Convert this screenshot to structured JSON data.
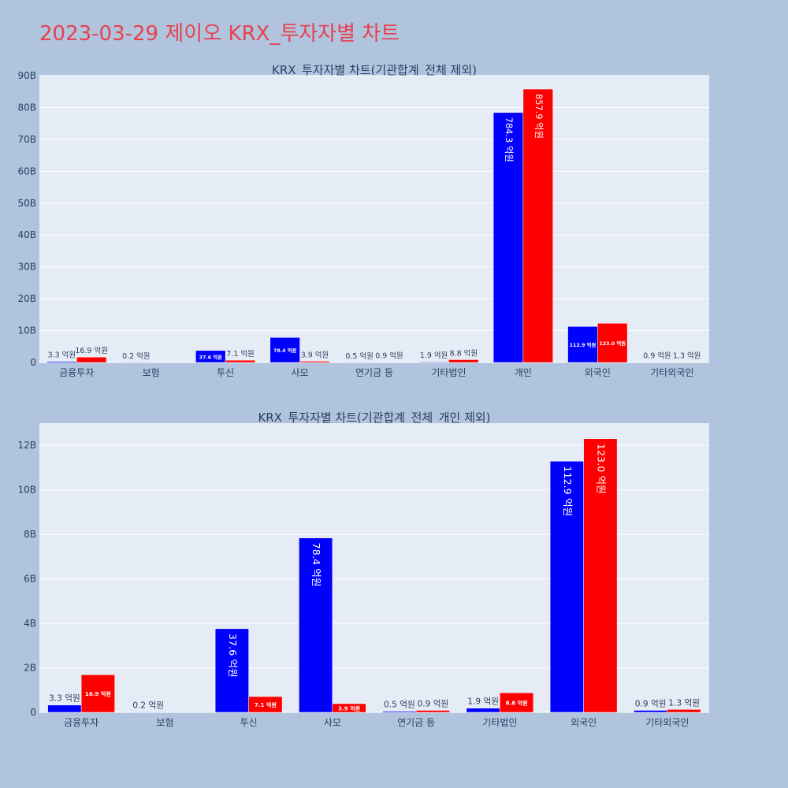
{
  "page": {
    "title": "2023-03-29 제이오 KRX_투자자별 차트",
    "title_color": "#e8414f",
    "background": "#b0c4de",
    "plot_background": "#e5ecf6"
  },
  "chart_data": [
    {
      "type": "bar",
      "title": "KRX_투자자별 차트(기관합계_전체 제외)",
      "xlabel": "",
      "ylabel": "",
      "ylim": [
        0,
        90000000000
      ],
      "yticks": [
        0,
        10000000000,
        20000000000,
        30000000000,
        40000000000,
        50000000000,
        60000000000,
        70000000000,
        80000000000,
        90000000000
      ],
      "ytick_labels": [
        "0",
        "10B",
        "20B",
        "30B",
        "40B",
        "50B",
        "60B",
        "70B",
        "80B",
        "90B"
      ],
      "grid": true,
      "categories": [
        "금융투자",
        "보험",
        "투신",
        "사모",
        "연기금 등",
        "기타법인",
        "개인",
        "외국인",
        "기타외국인"
      ],
      "series": [
        {
          "color": "#0000ff",
          "values": [
            330000000,
            20000000,
            3760000000,
            7840000000,
            50000000,
            190000000,
            78430000000,
            11290000000,
            90000000
          ],
          "labels": [
            "3.3 억원",
            "0.2 억원",
            "37.6 억원",
            "78.4 억원",
            "0.5 억원",
            "1.9 억원",
            "784.3 억원",
            "112.9 억원",
            "0.9 억원"
          ]
        },
        {
          "color": "#ff0000",
          "values": [
            1690000000,
            null,
            710000000,
            390000000,
            90000000,
            880000000,
            85790000000,
            12300000000,
            130000000
          ],
          "labels": [
            "16.9 억원",
            "",
            "7.1 억원",
            "3.9 억원",
            "0.9 억원",
            "8.8 억원",
            "857.9 억원",
            "123.0 억원",
            "1.3 억원"
          ]
        }
      ]
    },
    {
      "type": "bar",
      "title": "KRX_투자자별 차트(기관합계_전체_개인 제외)",
      "xlabel": "",
      "ylabel": "",
      "ylim": [
        0,
        13000000000
      ],
      "yticks": [
        0,
        2000000000,
        4000000000,
        6000000000,
        8000000000,
        10000000000,
        12000000000
      ],
      "ytick_labels": [
        "0",
        "2B",
        "4B",
        "6B",
        "8B",
        "10B",
        "12B"
      ],
      "grid": true,
      "categories": [
        "금융투자",
        "보험",
        "투신",
        "사모",
        "연기금 등",
        "기타법인",
        "외국인",
        "기타외국인"
      ],
      "series": [
        {
          "color": "#0000ff",
          "values": [
            330000000,
            20000000,
            3760000000,
            7840000000,
            50000000,
            190000000,
            11290000000,
            90000000
          ],
          "labels": [
            "3.3 억원",
            "0.2 억원",
            "37.6 억원",
            "78.4 억원",
            "0.5 억원",
            "1.9 억원",
            "112.9 억원",
            "0.9 억원"
          ]
        },
        {
          "color": "#ff0000",
          "values": [
            1690000000,
            null,
            710000000,
            390000000,
            90000000,
            880000000,
            12300000000,
            130000000
          ],
          "labels": [
            "16.9 억원",
            "",
            "7.1 억원",
            "3.9 억원",
            "0.9 억원",
            "8.8 억원",
            "123.0 억원",
            "1.3 억원"
          ]
        }
      ]
    }
  ]
}
